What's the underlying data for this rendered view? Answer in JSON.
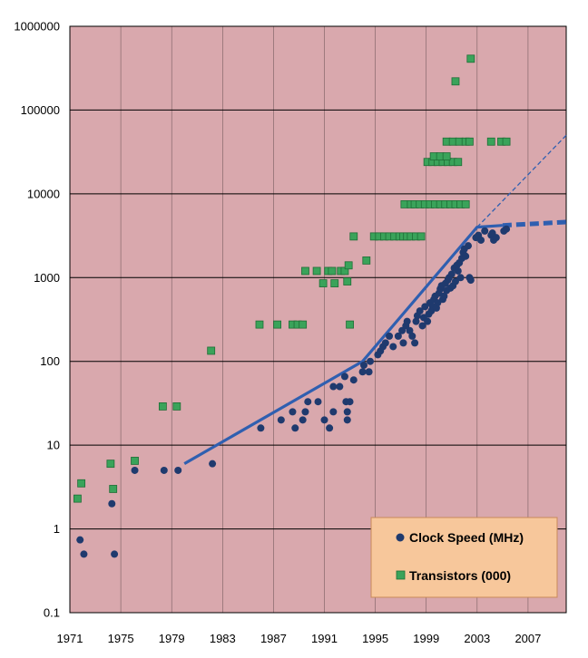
{
  "chart_data": {
    "type": "scatter",
    "title": "",
    "xlabel": "",
    "ylabel": "",
    "xlim": [
      1971,
      2010
    ],
    "ylim": [
      0.1,
      1000000
    ],
    "y_scale": "log",
    "grid": true,
    "legend_position": "bottom-right",
    "x_ticks": [
      "1971",
      "1975",
      "1979",
      "1983",
      "1987",
      "1991",
      "1995",
      "1999",
      "2003",
      "2007"
    ],
    "y_ticks": [
      "1000000",
      "100000",
      "10000",
      "1000",
      "100",
      "10",
      "1",
      "0.1"
    ],
    "colors": {
      "plot_background": "#d9a8ad",
      "clock": "#1f3a6e",
      "transistors": "#3aa35a",
      "trend": "#2f5fb0",
      "legend_background": "#f7c79b"
    },
    "series": [
      {
        "name": "Clock Speed (MHz)",
        "marker": "circle",
        "points": [
          [
            1971.8,
            0.74
          ],
          [
            1972.1,
            0.5
          ],
          [
            1974.3,
            2
          ],
          [
            1974.5,
            0.5
          ],
          [
            1976.1,
            5
          ],
          [
            1978.4,
            5
          ],
          [
            1979.5,
            5
          ],
          [
            1982.2,
            6
          ],
          [
            1986,
            16
          ],
          [
            1987.6,
            20
          ],
          [
            1988.5,
            25
          ],
          [
            1988.7,
            16
          ],
          [
            1989.3,
            20
          ],
          [
            1989.5,
            25
          ],
          [
            1989.7,
            33
          ],
          [
            1990.5,
            33
          ],
          [
            1991,
            20
          ],
          [
            1991.4,
            16
          ],
          [
            1991.7,
            25
          ],
          [
            1991.7,
            50
          ],
          [
            1992.2,
            50
          ],
          [
            1992.6,
            66
          ],
          [
            1992.7,
            33
          ],
          [
            1992.8,
            25
          ],
          [
            1992.8,
            20
          ],
          [
            1993,
            33
          ],
          [
            1993.3,
            60
          ],
          [
            1994,
            75
          ],
          [
            1994.1,
            90
          ],
          [
            1994.5,
            75
          ],
          [
            1994.6,
            100
          ],
          [
            1995.2,
            120
          ],
          [
            1995.4,
            133
          ],
          [
            1995.6,
            150
          ],
          [
            1995.8,
            166
          ],
          [
            1996.1,
            200
          ],
          [
            1996.4,
            150
          ],
          [
            1996.8,
            200
          ],
          [
            1997.1,
            233
          ],
          [
            1997.2,
            166
          ],
          [
            1997.4,
            266
          ],
          [
            1997.5,
            300
          ],
          [
            1997.7,
            233
          ],
          [
            1997.9,
            200
          ],
          [
            1998.1,
            166
          ],
          [
            1998.2,
            300
          ],
          [
            1998.3,
            350
          ],
          [
            1998.5,
            400
          ],
          [
            1998.7,
            266
          ],
          [
            1998.8,
            333
          ],
          [
            1998.9,
            450
          ],
          [
            1999.1,
            300
          ],
          [
            1999.2,
            366
          ],
          [
            1999.3,
            500
          ],
          [
            1999.4,
            400
          ],
          [
            1999.5,
            450
          ],
          [
            1999.6,
            550
          ],
          [
            1999.7,
            600
          ],
          [
            1999.8,
            433
          ],
          [
            1999.9,
            500
          ],
          [
            2000,
            650
          ],
          [
            2000.1,
            733
          ],
          [
            2000.2,
            800
          ],
          [
            2000.3,
            550
          ],
          [
            2000.4,
            600
          ],
          [
            2000.5,
            850
          ],
          [
            2000.6,
            700
          ],
          [
            2000.7,
            933
          ],
          [
            2000.8,
            1000
          ],
          [
            2000.9,
            750
          ],
          [
            2001,
            1100
          ],
          [
            2001.1,
            800
          ],
          [
            2001.2,
            1300
          ],
          [
            2001.3,
            900
          ],
          [
            2001.4,
            1400
          ],
          [
            2001.5,
            1200
          ],
          [
            2001.6,
            1500
          ],
          [
            2001.7,
            1000
          ],
          [
            2001.8,
            1700
          ],
          [
            2001.9,
            2000
          ],
          [
            2002,
            2200
          ],
          [
            2002.1,
            1800
          ],
          [
            2002.3,
            2400
          ],
          [
            2002.4,
            1000
          ],
          [
            2002.5,
            933
          ],
          [
            2002.9,
            3000
          ],
          [
            2003.1,
            3200
          ],
          [
            2003.3,
            2800
          ],
          [
            2003.6,
            3600
          ],
          [
            2004.1,
            3200
          ],
          [
            2004.2,
            3400
          ],
          [
            2004.3,
            2800
          ],
          [
            2004.5,
            3000
          ],
          [
            2005.1,
            3600
          ],
          [
            2005.3,
            3800
          ]
        ]
      },
      {
        "name": "Transistors (000)",
        "marker": "square",
        "points": [
          [
            1971.6,
            2.3
          ],
          [
            1971.9,
            3.5
          ],
          [
            1974.2,
            6
          ],
          [
            1974.4,
            3
          ],
          [
            1976.1,
            6.5
          ],
          [
            1978.3,
            29
          ],
          [
            1979.4,
            29
          ],
          [
            1982.1,
            134
          ],
          [
            1985.9,
            275
          ],
          [
            1987.3,
            275
          ],
          [
            1988.5,
            275
          ],
          [
            1988.9,
            275
          ],
          [
            1989.3,
            275
          ],
          [
            1989.5,
            1200
          ],
          [
            1990.4,
            1200
          ],
          [
            1990.9,
            855
          ],
          [
            1991.3,
            1200
          ],
          [
            1991.6,
            1200
          ],
          [
            1991.8,
            855
          ],
          [
            1992.3,
            1200
          ],
          [
            1992.6,
            1200
          ],
          [
            1992.8,
            900
          ],
          [
            1992.9,
            1400
          ],
          [
            1993,
            275
          ],
          [
            1993.3,
            3100
          ],
          [
            1994.3,
            1600
          ],
          [
            1994.9,
            3100
          ],
          [
            1995.3,
            3100
          ],
          [
            1995.7,
            3100
          ],
          [
            1996.1,
            3100
          ],
          [
            1996.5,
            3100
          ],
          [
            1996.9,
            3100
          ],
          [
            1997.2,
            3100
          ],
          [
            1997.5,
            3100
          ],
          [
            1997.8,
            3100
          ],
          [
            1998.2,
            3100
          ],
          [
            1998.6,
            3100
          ],
          [
            1997.3,
            7500
          ],
          [
            1997.8,
            7500
          ],
          [
            1998.1,
            7500
          ],
          [
            1998.5,
            7500
          ],
          [
            1998.9,
            7500
          ],
          [
            1999.3,
            7500
          ],
          [
            1999.7,
            7500
          ],
          [
            2000.1,
            7500
          ],
          [
            2000.5,
            7500
          ],
          [
            2000.9,
            7500
          ],
          [
            2001.3,
            7500
          ],
          [
            2001.7,
            7500
          ],
          [
            2002.1,
            7500
          ],
          [
            1999.1,
            24000
          ],
          [
            1999.5,
            24000
          ],
          [
            1999.9,
            24000
          ],
          [
            2000.3,
            24000
          ],
          [
            2000.7,
            24000
          ],
          [
            2001.1,
            24000
          ],
          [
            2001.5,
            24000
          ],
          [
            1999.6,
            28000
          ],
          [
            2000.1,
            28000
          ],
          [
            2000.6,
            28000
          ],
          [
            2000.6,
            42000
          ],
          [
            2001.1,
            42000
          ],
          [
            2001.6,
            42000
          ],
          [
            2002.1,
            42000
          ],
          [
            2002.4,
            42000
          ],
          [
            2001.3,
            220000
          ],
          [
            2002.5,
            410000
          ],
          [
            2004.1,
            42000
          ],
          [
            2004.9,
            42000
          ],
          [
            2005.3,
            42000
          ]
        ]
      }
    ],
    "trend_lines": [
      {
        "style": "solid",
        "points": [
          [
            1980,
            6
          ],
          [
            1994,
            100
          ],
          [
            2003,
            4000
          ],
          [
            2005,
            4200
          ]
        ]
      },
      {
        "style": "dashed",
        "points": [
          [
            2003,
            4000
          ],
          [
            2010,
            50000
          ]
        ]
      },
      {
        "style": "thick-dashed",
        "points": [
          [
            2005,
            4200
          ],
          [
            2010,
            4600
          ]
        ]
      }
    ]
  }
}
